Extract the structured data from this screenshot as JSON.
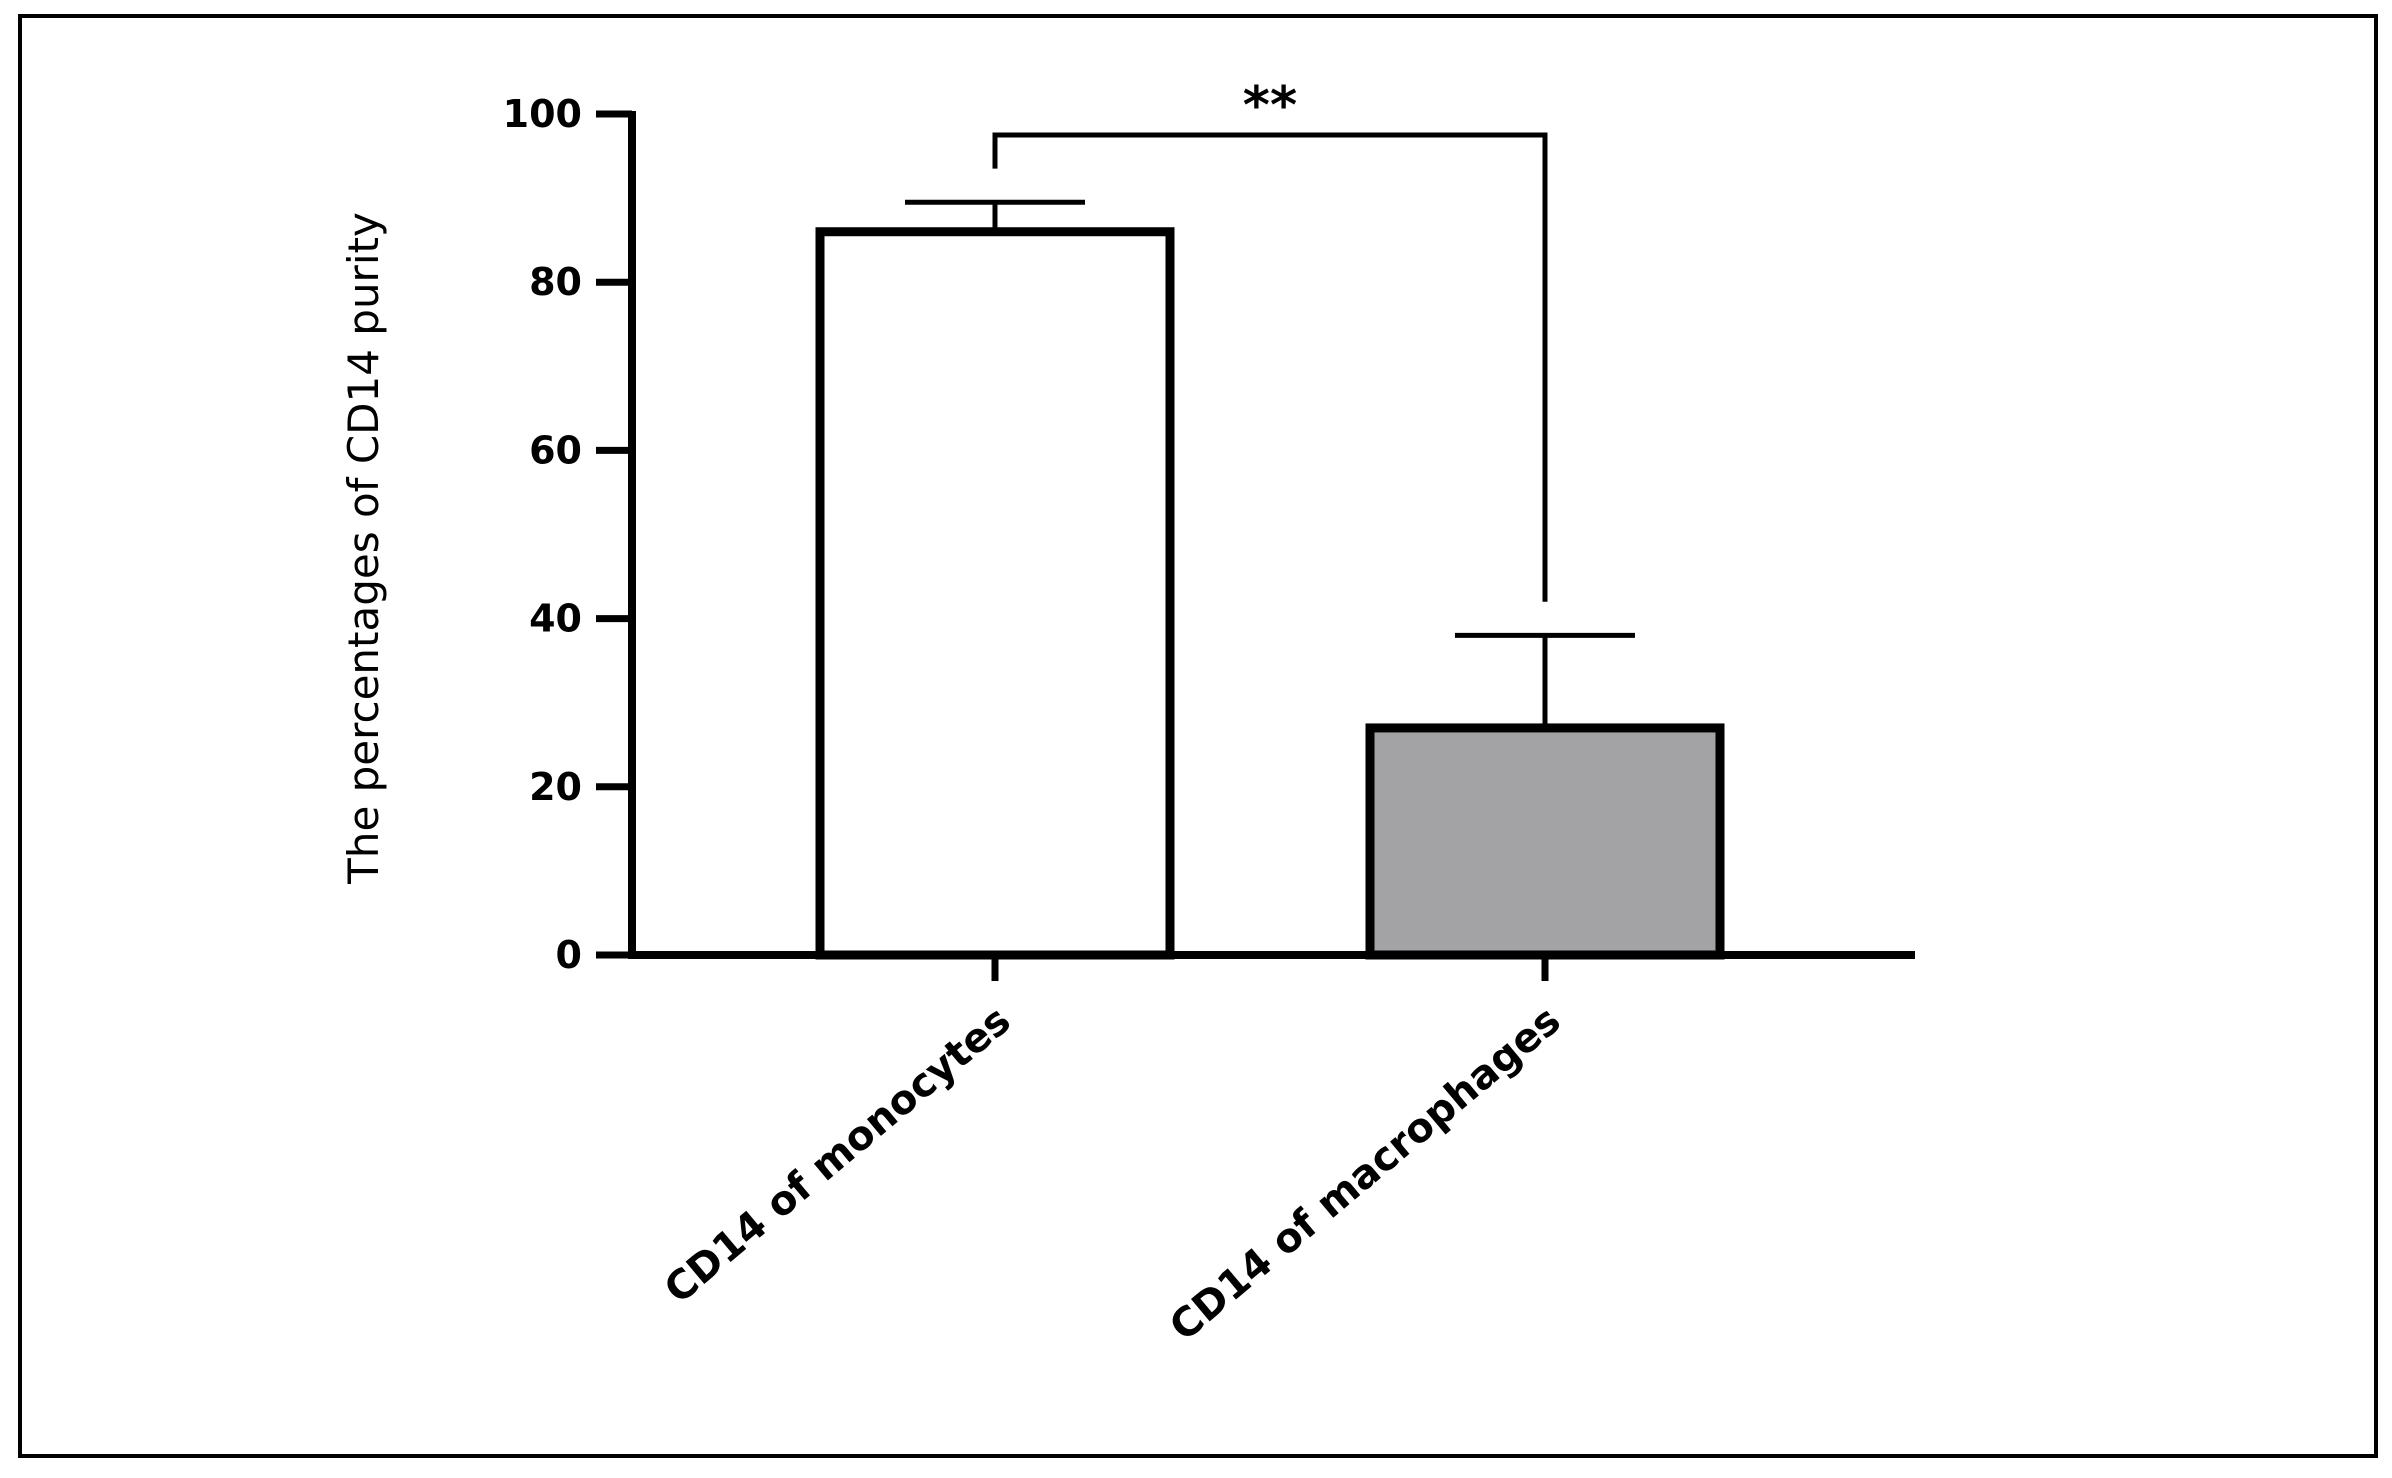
{
  "chart_data": {
    "type": "bar",
    "categories": [
      "CD14 of monocytes",
      "CD14 of macrophages"
    ],
    "values": [
      86,
      27
    ],
    "error_upper": [
      89.5,
      38
    ],
    "bar_colors": [
      "#ffffff",
      "#a3a3a6"
    ],
    "title": "",
    "xlabel": "",
    "ylabel": "The percentages of CD14 purity",
    "ylim": [
      0,
      100
    ],
    "yticks": [
      "0",
      "20",
      "40",
      "60",
      "80",
      "100"
    ],
    "ytick_values": [
      0,
      20,
      40,
      60,
      80,
      100
    ],
    "significance": {
      "label": "**",
      "between": [
        0,
        1
      ]
    },
    "grid": false,
    "legend": "none"
  }
}
